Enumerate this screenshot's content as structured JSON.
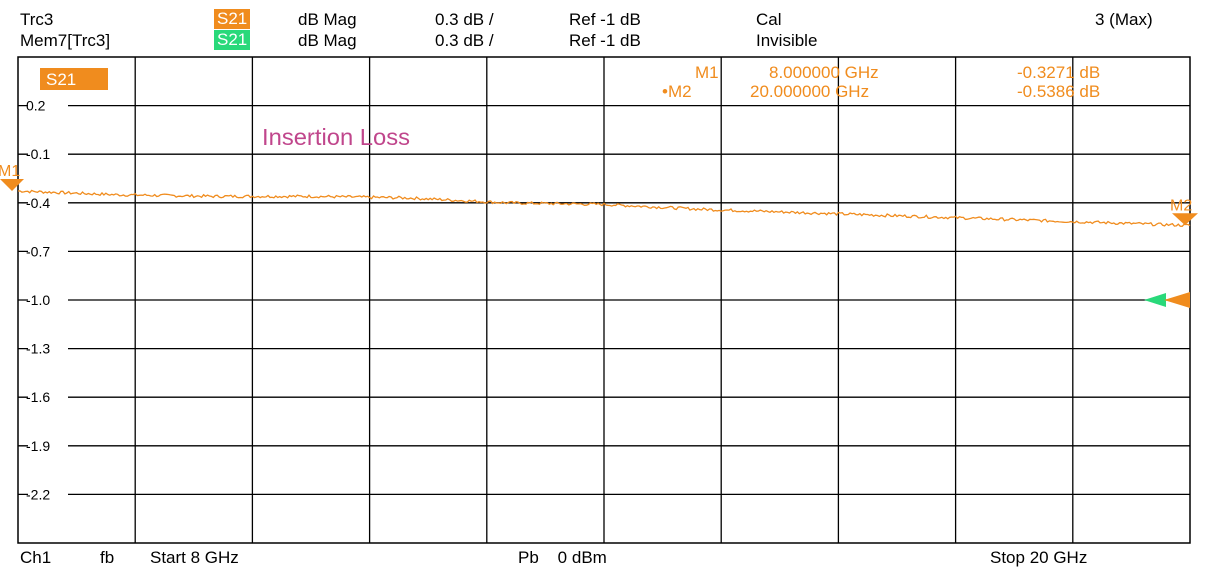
{
  "header": {
    "row1": {
      "trace": "Trc3",
      "param": "S21",
      "format": "dB Mag",
      "scale": "0.3 dB /",
      "ref": "Ref -1 dB",
      "status": "Cal",
      "right": "3 (Max)"
    },
    "row2": {
      "trace": "Mem7[Trc3]",
      "param": "S21",
      "format": "dB Mag",
      "scale": "0.3 dB /",
      "ref": "Ref -1 dB",
      "status": "Invisible"
    }
  },
  "chart_data": {
    "type": "line",
    "title": "Insertion Loss",
    "trace_label": "S21",
    "xlabel": "",
    "ylabel": "",
    "x_unit": "GHz",
    "xlim": [
      8,
      20
    ],
    "ylim": [
      -2.5,
      0.5
    ],
    "y_ticks": [
      0.2,
      -0.1,
      -0.4,
      -0.7,
      -1.0,
      -1.3,
      -1.6,
      -1.9,
      -2.2
    ],
    "y_tick_labels": [
      "0.2",
      "-0.1",
      "-0.4",
      "-0.7",
      "-1.0",
      "-1.3",
      "-1.6",
      "-1.9",
      "-2.2"
    ],
    "x_divisions": 10,
    "grid": true,
    "series": [
      {
        "color": "#f08c1e",
        "x": [
          8.0,
          9.0,
          10.0,
          11.0,
          12.0,
          13.0,
          14.0,
          15.0,
          16.0,
          17.0,
          18.0,
          19.0,
          20.0
        ],
        "y": [
          -0.327,
          -0.35,
          -0.36,
          -0.36,
          -0.37,
          -0.4,
          -0.41,
          -0.44,
          -0.46,
          -0.48,
          -0.5,
          -0.52,
          -0.54
        ]
      }
    ],
    "markers": [
      {
        "label": "M1",
        "marker_label": "M1",
        "x_text": "8.000000 GHz",
        "y_text": "-0.3271 dB",
        "x": 8.0,
        "y": -0.3271
      },
      {
        "label": "•M2",
        "marker_label": "M2",
        "x_text": "20.000000 GHz",
        "y_text": "-0.5386 dB",
        "x": 20.0,
        "y": -0.5386
      }
    ],
    "ref_level": -1.0,
    "colors": {
      "trace": "#f08c1e",
      "memory": "#29d97a",
      "title": "#c0468c"
    }
  },
  "footer": {
    "channel": "Ch1",
    "mode": "fb",
    "start": "Start  8 GHz",
    "power": "Pb    0 dBm",
    "stop": "Stop  20 GHz"
  }
}
